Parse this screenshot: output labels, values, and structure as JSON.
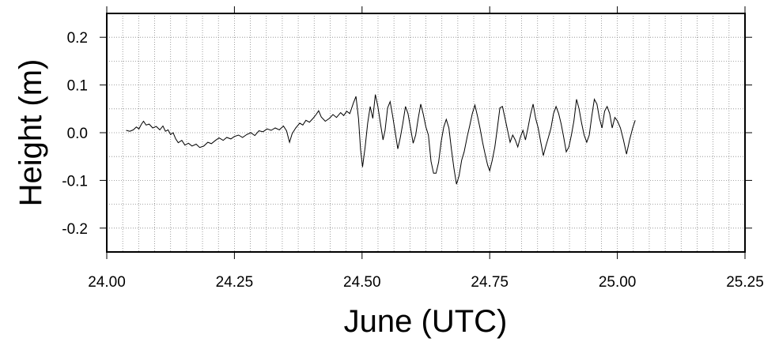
{
  "chart_data": {
    "type": "line",
    "xlabel": "June (UTC)",
    "ylabel": "Height (m)",
    "xlim": [
      24.0,
      25.25
    ],
    "ylim": [
      -0.25,
      0.25
    ],
    "x_ticks": [
      24.0,
      24.25,
      24.5,
      24.75,
      25.0,
      25.25
    ],
    "x_tick_labels": [
      "24.00",
      "24.25",
      "24.50",
      "24.75",
      "25.00",
      "25.25"
    ],
    "y_ticks": [
      -0.2,
      -0.1,
      0.0,
      0.1,
      0.2
    ],
    "y_tick_labels": [
      "-0.2",
      "-0.1",
      "0.0",
      "0.1",
      "0.2"
    ],
    "grid": "dotted, minor x every 0.03125 day, y every 0.05 m",
    "line_color": "#000000",
    "series": [
      {
        "points": [
          [
            24.038,
            0.005
          ],
          [
            24.045,
            0.003
          ],
          [
            24.052,
            0.006
          ],
          [
            24.058,
            0.012
          ],
          [
            24.063,
            0.008
          ],
          [
            24.068,
            0.018
          ],
          [
            24.072,
            0.024
          ],
          [
            24.077,
            0.016
          ],
          [
            24.083,
            0.018
          ],
          [
            24.09,
            0.01
          ],
          [
            24.097,
            0.013
          ],
          [
            24.104,
            0.006
          ],
          [
            24.11,
            0.014
          ],
          [
            24.115,
            0.003
          ],
          [
            24.12,
            0.006
          ],
          [
            24.125,
            -0.004
          ],
          [
            24.13,
            0.0
          ],
          [
            24.135,
            -0.013
          ],
          [
            24.14,
            -0.021
          ],
          [
            24.147,
            -0.016
          ],
          [
            24.153,
            -0.026
          ],
          [
            24.16,
            -0.022
          ],
          [
            24.167,
            -0.028
          ],
          [
            24.175,
            -0.024
          ],
          [
            24.182,
            -0.031
          ],
          [
            24.19,
            -0.028
          ],
          [
            24.198,
            -0.02
          ],
          [
            24.205,
            -0.023
          ],
          [
            24.213,
            -0.016
          ],
          [
            24.22,
            -0.011
          ],
          [
            24.228,
            -0.016
          ],
          [
            24.235,
            -0.01
          ],
          [
            24.243,
            -0.013
          ],
          [
            24.25,
            -0.008
          ],
          [
            24.258,
            -0.005
          ],
          [
            24.266,
            -0.01
          ],
          [
            24.274,
            -0.004
          ],
          [
            24.282,
            0.0
          ],
          [
            24.29,
            -0.006
          ],
          [
            24.298,
            0.004
          ],
          [
            24.306,
            0.002
          ],
          [
            24.314,
            0.008
          ],
          [
            24.322,
            0.005
          ],
          [
            24.33,
            0.01
          ],
          [
            24.338,
            0.006
          ],
          [
            24.346,
            0.014
          ],
          [
            24.352,
            0.004
          ],
          [
            24.358,
            -0.02
          ],
          [
            24.363,
            -0.002
          ],
          [
            24.37,
            0.01
          ],
          [
            24.378,
            0.02
          ],
          [
            24.384,
            0.016
          ],
          [
            24.39,
            0.026
          ],
          [
            24.397,
            0.022
          ],
          [
            24.404,
            0.03
          ],
          [
            24.41,
            0.038
          ],
          [
            24.415,
            0.046
          ],
          [
            24.42,
            0.033
          ],
          [
            24.428,
            0.024
          ],
          [
            24.436,
            0.03
          ],
          [
            24.443,
            0.038
          ],
          [
            24.45,
            0.032
          ],
          [
            24.458,
            0.042
          ],
          [
            24.464,
            0.036
          ],
          [
            24.47,
            0.045
          ],
          [
            24.476,
            0.04
          ],
          [
            24.483,
            0.062
          ],
          [
            24.488,
            0.076
          ],
          [
            24.493,
            0.03
          ],
          [
            24.497,
            -0.035
          ],
          [
            24.501,
            -0.072
          ],
          [
            24.506,
            -0.03
          ],
          [
            24.511,
            0.02
          ],
          [
            24.516,
            0.055
          ],
          [
            24.521,
            0.03
          ],
          [
            24.526,
            0.08
          ],
          [
            24.531,
            0.055
          ],
          [
            24.536,
            0.02
          ],
          [
            24.541,
            -0.015
          ],
          [
            24.545,
            0.005
          ],
          [
            24.55,
            0.052
          ],
          [
            24.555,
            0.065
          ],
          [
            24.56,
            0.035
          ],
          [
            24.565,
            0.0
          ],
          [
            24.57,
            -0.034
          ],
          [
            24.575,
            -0.01
          ],
          [
            24.58,
            0.02
          ],
          [
            24.585,
            0.055
          ],
          [
            24.59,
            0.04
          ],
          [
            24.595,
            0.01
          ],
          [
            24.6,
            -0.022
          ],
          [
            24.605,
            -0.005
          ],
          [
            24.61,
            0.03
          ],
          [
            24.615,
            0.06
          ],
          [
            24.62,
            0.038
          ],
          [
            24.625,
            0.012
          ],
          [
            24.63,
            -0.005
          ],
          [
            24.635,
            -0.06
          ],
          [
            24.64,
            -0.085
          ],
          [
            24.645,
            -0.085
          ],
          [
            24.65,
            -0.062
          ],
          [
            24.655,
            -0.018
          ],
          [
            24.66,
            0.012
          ],
          [
            24.665,
            0.028
          ],
          [
            24.67,
            0.01
          ],
          [
            24.675,
            -0.035
          ],
          [
            24.68,
            -0.075
          ],
          [
            24.685,
            -0.108
          ],
          [
            24.69,
            -0.09
          ],
          [
            24.695,
            -0.058
          ],
          [
            24.7,
            -0.04
          ],
          [
            24.706,
            -0.008
          ],
          [
            24.711,
            0.015
          ],
          [
            24.716,
            0.04
          ],
          [
            24.721,
            0.058
          ],
          [
            24.726,
            0.035
          ],
          [
            24.731,
            0.01
          ],
          [
            24.736,
            -0.02
          ],
          [
            24.741,
            -0.045
          ],
          [
            24.746,
            -0.068
          ],
          [
            24.75,
            -0.08
          ],
          [
            24.755,
            -0.058
          ],
          [
            24.76,
            -0.03
          ],
          [
            24.765,
            0.01
          ],
          [
            24.77,
            0.052
          ],
          [
            24.775,
            0.055
          ],
          [
            24.78,
            0.03
          ],
          [
            24.785,
            0.005
          ],
          [
            24.79,
            -0.02
          ],
          [
            24.795,
            -0.005
          ],
          [
            24.8,
            -0.015
          ],
          [
            24.805,
            -0.03
          ],
          [
            24.81,
            -0.01
          ],
          [
            24.815,
            0.005
          ],
          [
            24.82,
            -0.015
          ],
          [
            24.825,
            0.01
          ],
          [
            24.83,
            0.038
          ],
          [
            24.835,
            0.06
          ],
          [
            24.84,
            0.03
          ],
          [
            24.845,
            0.01
          ],
          [
            24.85,
            -0.02
          ],
          [
            24.855,
            -0.048
          ],
          [
            24.86,
            -0.028
          ],
          [
            24.865,
            -0.01
          ],
          [
            24.87,
            0.01
          ],
          [
            24.875,
            0.04
          ],
          [
            24.88,
            0.055
          ],
          [
            24.885,
            0.04
          ],
          [
            24.89,
            0.018
          ],
          [
            24.895,
            -0.01
          ],
          [
            24.9,
            -0.04
          ],
          [
            24.905,
            -0.03
          ],
          [
            24.91,
            -0.005
          ],
          [
            24.915,
            0.025
          ],
          [
            24.92,
            0.07
          ],
          [
            24.925,
            0.05
          ],
          [
            24.93,
            0.02
          ],
          [
            24.935,
            -0.005
          ],
          [
            24.94,
            -0.02
          ],
          [
            24.945,
            -0.005
          ],
          [
            24.95,
            0.035
          ],
          [
            24.955,
            0.07
          ],
          [
            24.96,
            0.06
          ],
          [
            24.965,
            0.03
          ],
          [
            24.97,
            0.01
          ],
          [
            24.975,
            0.045
          ],
          [
            24.98,
            0.055
          ],
          [
            24.985,
            0.04
          ],
          [
            24.99,
            0.01
          ],
          [
            24.995,
            0.032
          ],
          [
            25.0,
            0.025
          ],
          [
            25.006,
            0.01
          ],
          [
            25.012,
            -0.015
          ],
          [
            25.018,
            -0.045
          ],
          [
            25.024,
            -0.015
          ],
          [
            25.03,
            0.01
          ],
          [
            25.035,
            0.026
          ]
        ]
      }
    ]
  }
}
